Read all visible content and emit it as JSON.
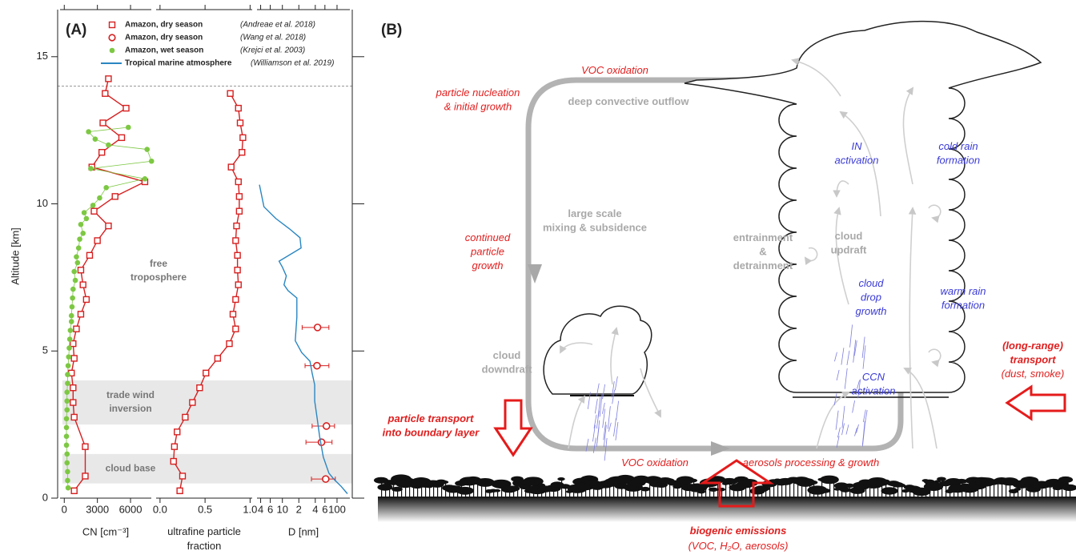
{
  "panel_a_label": "(A)",
  "chart_data": [
    {
      "type": "scatter",
      "xlabel": "CN [cm⁻³]",
      "ylabel": "Altitude [km]",
      "xlim": [
        -600,
        8100
      ],
      "xticks": [
        0,
        3000,
        6000
      ],
      "ylim": [
        0,
        16.6
      ],
      "yticks": [
        0,
        5,
        10,
        15
      ],
      "hline": 14,
      "annotation": [
        "free",
        "troposphere"
      ],
      "bands": [
        {
          "label": [
            "trade wind",
            "inversion"
          ],
          "ylim": [
            2.5,
            4
          ]
        },
        {
          "label": [
            "cloud base"
          ],
          "ylim": [
            0.5,
            1.5
          ]
        }
      ],
      "series": [
        {
          "name": "Amazon, dry season",
          "source": "(Andreae et al. 2018)",
          "color": "#d62020",
          "marker": "square",
          "line": true,
          "x": [
            4000,
            3700,
            5600,
            3500,
            5200,
            3400,
            2500,
            7300,
            4600,
            2700,
            4000,
            3000,
            2300,
            1500,
            1700,
            2000,
            1500,
            1100,
            800,
            900,
            650,
            800,
            800,
            900,
            1900,
            1900,
            900
          ],
          "y": [
            14.25,
            13.75,
            13.25,
            12.75,
            12.25,
            11.75,
            11.25,
            10.75,
            10.25,
            9.75,
            9.25,
            8.75,
            8.25,
            7.75,
            7.25,
            6.75,
            6.25,
            5.75,
            5.25,
            4.75,
            4.25,
            3.75,
            3.25,
            2.75,
            1.75,
            0.75,
            0.25
          ]
        },
        {
          "name": "Amazon, wet season",
          "source": "(Krejci et al. 2003)",
          "color": "#7dc843",
          "marker": "dot",
          "line": true,
          "x": [
            5800,
            2200,
            2800,
            4000,
            7500,
            7900,
            2400,
            7300,
            3800,
            3200,
            2600,
            1800,
            2000,
            1500,
            1700,
            1400,
            1300,
            1100,
            1200,
            900,
            1000,
            800,
            750,
            700,
            650,
            650,
            550,
            500,
            450,
            400,
            350,
            300,
            300,
            250,
            250,
            250,
            200,
            200,
            200,
            200,
            250,
            250,
            300,
            300,
            350
          ],
          "y": [
            12.6,
            12.45,
            12.2,
            12.0,
            11.85,
            11.45,
            11.2,
            10.85,
            10.55,
            10.2,
            9.95,
            9.7,
            9.5,
            9.3,
            9.0,
            8.8,
            8.5,
            8.2,
            8.0,
            7.7,
            7.4,
            7.1,
            6.8,
            6.5,
            6.2,
            6.0,
            5.7,
            5.4,
            5.1,
            4.8,
            4.5,
            4.2,
            3.9,
            3.6,
            3.3,
            3.0,
            2.7,
            2.4,
            2.1,
            1.8,
            1.5,
            1.2,
            0.9,
            0.6,
            0.35
          ]
        }
      ]
    },
    {
      "type": "scatter",
      "xlabel": [
        "ultrafine particle",
        "fraction"
      ],
      "xlim": [
        -0.07,
        1.05
      ],
      "xticks": [
        {
          "value": 0,
          "label": "0.0"
        },
        {
          "value": 0.5,
          "label": "0.5"
        },
        {
          "value": 1,
          "label": "1.0"
        }
      ],
      "ylim": [
        0,
        16.6
      ],
      "series": [
        {
          "color": "#d62020",
          "marker": "square",
          "line": true,
          "x": [
            0.78,
            0.87,
            0.89,
            0.92,
            0.91,
            0.79,
            0.87,
            0.88,
            0.88,
            0.85,
            0.84,
            0.86,
            0.86,
            0.87,
            0.84,
            0.81,
            0.84,
            0.77,
            0.64,
            0.51,
            0.44,
            0.36,
            0.28,
            0.19,
            0.16,
            0.15,
            0.25,
            0.22
          ],
          "y": [
            13.75,
            13.25,
            12.75,
            12.25,
            11.75,
            11.25,
            10.75,
            10.25,
            9.75,
            9.25,
            8.75,
            8.25,
            7.75,
            7.25,
            6.75,
            6.25,
            5.75,
            5.25,
            4.75,
            4.25,
            3.75,
            3.25,
            2.75,
            2.25,
            1.75,
            1.25,
            0.75,
            0.25
          ]
        }
      ]
    },
    {
      "type": "scatter",
      "xlabel": "D [nm]",
      "xscale": "log",
      "xlim": [
        3.1,
        190
      ],
      "xticks": [
        4,
        6,
        10,
        {
          "value": 20,
          "label": "2"
        },
        {
          "value": 40,
          "label": "4"
        },
        {
          "value": 60,
          "label": "6"
        },
        100
      ],
      "ylim": [
        0,
        16.6
      ],
      "series": [
        {
          "name": "Amazon, dry season",
          "source": "(Wang et al. 2018)",
          "color": "#d62020",
          "marker": "circle",
          "line": false,
          "x": [
            44,
            43,
            64,
            52,
            62
          ],
          "x_low": [
            23,
            26,
            35,
            27,
            34
          ],
          "x_high": [
            71,
            71,
            90,
            81,
            93
          ],
          "y": [
            5.8,
            4.5,
            2.45,
            1.9,
            0.65
          ]
        },
        {
          "name": "Tropical marine atmosphere",
          "source": "(Williamson et al. 2019)",
          "color": "#2a86c2",
          "marker": "none",
          "line": true,
          "x": [
            3.8,
            4.6,
            7.6,
            13.5,
            21,
            22,
            8.7,
            10,
            11.8,
            10.7,
            12.7,
            18.4,
            18.4,
            17.2,
            22.5,
            32,
            35,
            39,
            39,
            43,
            48,
            56,
            71,
            87,
            119,
            155
          ],
          "y": [
            10.65,
            9.9,
            9.5,
            9.15,
            8.85,
            8.5,
            8.05,
            7.85,
            7.55,
            7.25,
            7.05,
            6.8,
            6.15,
            5.35,
            4.95,
            4.65,
            4.25,
            3.85,
            3.3,
            2.75,
            2.1,
            1.4,
            0.85,
            0.65,
            0.4,
            0.15
          ]
        }
      ]
    }
  ],
  "diagram": {
    "label": "(B)",
    "texts": [
      [
        "VOC oxidation"
      ],
      [
        "particle nucleation",
        "& initial growth"
      ],
      [
        "deep convective outflow"
      ],
      [
        "IN",
        "activation"
      ],
      [
        "cold rain",
        "formation"
      ],
      [
        "large scale",
        "mixing & subsidence"
      ],
      [
        "continued",
        "particle",
        "growth"
      ],
      [
        "entrainment",
        "&",
        "detrainment"
      ],
      [
        "cloud",
        "updraft"
      ],
      [
        "cloud",
        "drop",
        "growth"
      ],
      [
        "warm rain",
        "formation"
      ],
      [
        "cloud",
        "downdraft"
      ],
      [
        "(long-range)",
        "transport"
      ],
      [
        "(dust, smoke)"
      ],
      [
        "CCN",
        "activation"
      ],
      [
        "particle transport",
        "into boundary layer"
      ],
      [
        "VOC oxidation"
      ],
      [
        "aerosols processing & growth"
      ],
      [
        "biogenic emissions"
      ],
      [
        "(VOC, H₂O, aerosols)"
      ]
    ]
  }
}
